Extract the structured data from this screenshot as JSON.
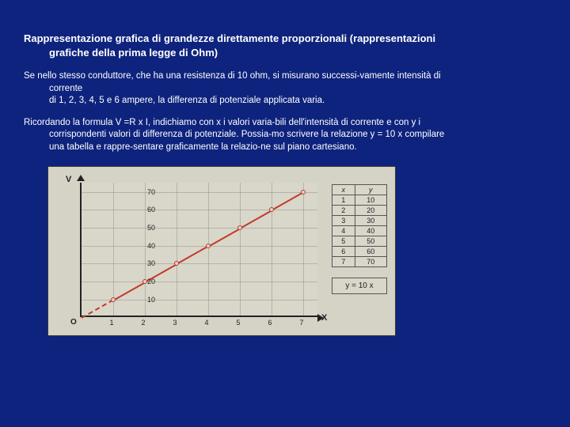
{
  "heading": {
    "line1": "Rappresentazione grafica di grandezze direttamente proporzionali (rappresentazioni",
    "line2": "grafiche della prima legge di Ohm)"
  },
  "para1": {
    "line1": "Se nello stesso conduttore, che ha una resistenza di 10 ohm, si misurano successi-vamente intensità di",
    "line2": "corrente",
    "line3": "di 1, 2, 3, 4, 5 e 6 ampere, la differenza di potenziale applicata varia."
  },
  "para2": {
    "line1": "Ricordando la formula V =R x I, indichiamo con x i valori varia-bili dell'intensità di corrente e con y i",
    "line2": "corrispondenti valori di differenza di potenziale. Possia-mo scrivere la relazione y = 10 x compilare",
    "line3": "una tabella e rappre-sentare graficamente la relazio-ne sul piano cartesiano."
  },
  "chart": {
    "type": "line",
    "y_title": "V",
    "x_title": "X",
    "origin": "O",
    "xlim": [
      0,
      7.5
    ],
    "ylim": [
      0,
      75
    ],
    "xticks": [
      1,
      2,
      3,
      4,
      5,
      6,
      7
    ],
    "yticks": [
      10,
      20,
      30,
      40,
      50,
      60,
      70
    ],
    "line_color": "#c23a2a",
    "points": [
      {
        "x": 1,
        "y": 10
      },
      {
        "x": 2,
        "y": 20
      },
      {
        "x": 3,
        "y": 30
      },
      {
        "x": 4,
        "y": 40
      },
      {
        "x": 5,
        "y": 50
      },
      {
        "x": 6,
        "y": 60
      },
      {
        "x": 7,
        "y": 70
      }
    ],
    "table": {
      "head_x": "x",
      "head_y": "y",
      "rows": [
        [
          "1",
          "10"
        ],
        [
          "2",
          "20"
        ],
        [
          "3",
          "30"
        ],
        [
          "4",
          "40"
        ],
        [
          "5",
          "50"
        ],
        [
          "6",
          "60"
        ],
        [
          "7",
          "70"
        ]
      ]
    },
    "formula": "y = 10 x"
  }
}
